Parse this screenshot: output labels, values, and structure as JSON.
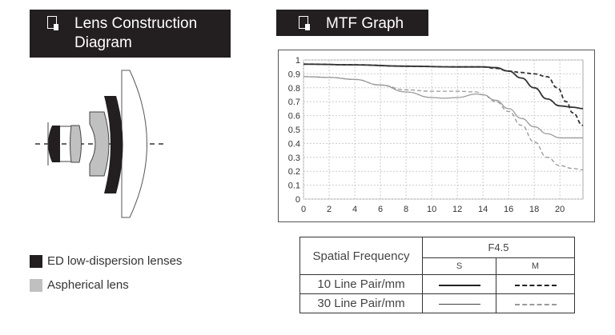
{
  "lens_section": {
    "title_line1": "Lens Construction",
    "title_line2": "Diagram",
    "icon": "document-icon"
  },
  "mtf_section": {
    "title": "MTF Graph",
    "icon": "document-icon"
  },
  "legend": [
    {
      "label": "ED low-dispersion lenses",
      "color": "#231f20"
    },
    {
      "label": "Aspherical lens",
      "color": "#c0c0c0"
    }
  ],
  "table": {
    "header": "Spatial Frequency",
    "aperture": "F4.5",
    "col_s": "S",
    "col_m": "M",
    "rows": [
      {
        "label": "10 Line Pair/mm",
        "color": "#222222"
      },
      {
        "label": "30 Line Pair/mm",
        "color": "#888888"
      }
    ]
  },
  "chart_data": {
    "type": "line",
    "title": "MTF Graph",
    "xlabel": "",
    "ylabel": "",
    "xlim": [
      0,
      21.8
    ],
    "ylim": [
      0,
      1
    ],
    "xticks": [
      0,
      2,
      4,
      6,
      8,
      10,
      12,
      14,
      16,
      18,
      20
    ],
    "yticks": [
      0,
      0.1,
      0.2,
      0.3,
      0.4,
      0.5,
      0.6,
      0.7,
      0.8,
      0.9,
      1
    ],
    "grid": true,
    "series": [
      {
        "name": "10 Line Pair/mm S",
        "color": "#333333",
        "dash": false,
        "x": [
          0,
          4,
          8,
          12,
          14,
          15,
          16,
          17,
          18,
          19,
          20,
          21,
          21.8
        ],
        "y": [
          0.97,
          0.965,
          0.955,
          0.95,
          0.95,
          0.945,
          0.92,
          0.87,
          0.8,
          0.72,
          0.67,
          0.66,
          0.65
        ]
      },
      {
        "name": "10 Line Pair/mm M",
        "color": "#333333",
        "dash": true,
        "x": [
          0,
          4,
          8,
          12,
          14,
          15,
          16,
          17,
          18,
          19,
          19.8,
          20.5,
          21,
          21.8
        ],
        "y": [
          0.97,
          0.965,
          0.955,
          0.95,
          0.95,
          0.94,
          0.92,
          0.91,
          0.9,
          0.88,
          0.8,
          0.7,
          0.62,
          0.53
        ]
      },
      {
        "name": "30 Line Pair/mm S",
        "color": "#999999",
        "dash": false,
        "x": [
          0,
          2,
          4,
          6,
          8,
          10,
          11,
          12,
          13.5,
          14,
          15,
          16,
          17,
          18,
          19,
          20,
          21.8
        ],
        "y": [
          0.88,
          0.875,
          0.86,
          0.82,
          0.77,
          0.73,
          0.725,
          0.73,
          0.755,
          0.75,
          0.71,
          0.65,
          0.58,
          0.52,
          0.47,
          0.44,
          0.44
        ]
      },
      {
        "name": "30 Line Pair/mm M",
        "color": "#999999",
        "dash": true,
        "x": [
          0,
          2,
          4,
          6,
          8,
          10,
          12,
          13.5,
          14,
          15,
          16,
          17,
          18,
          19,
          20,
          21,
          21.8
        ],
        "y": [
          0.88,
          0.875,
          0.86,
          0.82,
          0.785,
          0.775,
          0.775,
          0.77,
          0.75,
          0.7,
          0.63,
          0.53,
          0.41,
          0.3,
          0.24,
          0.22,
          0.21
        ]
      }
    ]
  }
}
